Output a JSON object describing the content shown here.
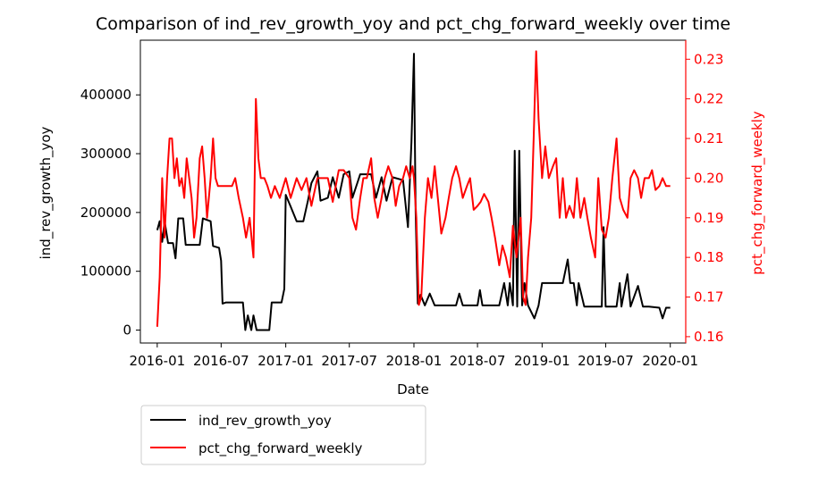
{
  "chart_data": {
    "type": "line",
    "title": "Comparison of ind_rev_growth_yoy and pct_chg_forward_weekly over time",
    "xlabel": "Date",
    "ylabel": "ind_rev_growth_yoy",
    "ylabel_right": "pct_chg_forward_weekly",
    "x_ticks": [
      "2016-01",
      "2016-07",
      "2017-01",
      "2017-07",
      "2018-01",
      "2018-07",
      "2019-01",
      "2019-07",
      "2020-01"
    ],
    "y_ticks_left": [
      0,
      100000,
      200000,
      300000,
      400000
    ],
    "y_ticks_right": [
      0.16,
      0.17,
      0.18,
      0.19,
      0.2,
      0.21,
      0.22,
      0.23
    ],
    "xlim": [
      "2015-11-14",
      "2020-02-14"
    ],
    "ylim_left": [
      -22000,
      493000
    ],
    "ylim_right": [
      0.1584,
      0.2348
    ],
    "legend_position": "below-left",
    "grid": false,
    "series": [
      {
        "name": "ind_rev_growth_yoy",
        "axis": "left",
        "color": "#000000",
        "points": [
          [
            "2016-01-01",
            170000
          ],
          [
            "2016-01-08",
            185000
          ],
          [
            "2016-01-15",
            150000
          ],
          [
            "2016-01-22",
            185000
          ],
          [
            "2016-02-01",
            148000
          ],
          [
            "2016-02-15",
            148000
          ],
          [
            "2016-02-22",
            122000
          ],
          [
            "2016-03-01",
            190000
          ],
          [
            "2016-03-15",
            190000
          ],
          [
            "2016-03-22",
            145000
          ],
          [
            "2016-04-15",
            145000
          ],
          [
            "2016-05-01",
            145000
          ],
          [
            "2016-05-10",
            190000
          ],
          [
            "2016-06-01",
            185000
          ],
          [
            "2016-06-08",
            143000
          ],
          [
            "2016-06-25",
            140000
          ],
          [
            "2016-07-01",
            118000
          ],
          [
            "2016-07-05",
            45000
          ],
          [
            "2016-07-15",
            47000
          ],
          [
            "2016-08-15",
            47000
          ],
          [
            "2016-09-01",
            47000
          ],
          [
            "2016-09-08",
            0
          ],
          [
            "2016-09-15",
            25000
          ],
          [
            "2016-09-25",
            0
          ],
          [
            "2016-10-01",
            25000
          ],
          [
            "2016-10-10",
            0
          ],
          [
            "2016-11-15",
            0
          ],
          [
            "2016-11-22",
            47000
          ],
          [
            "2016-12-20",
            47000
          ],
          [
            "2016-12-28",
            70000
          ],
          [
            "2017-01-01",
            230000
          ],
          [
            "2017-01-15",
            210000
          ],
          [
            "2017-02-01",
            185000
          ],
          [
            "2017-02-20",
            185000
          ],
          [
            "2017-03-05",
            220000
          ],
          [
            "2017-03-15",
            250000
          ],
          [
            "2017-04-01",
            270000
          ],
          [
            "2017-04-10",
            220000
          ],
          [
            "2017-05-01",
            225000
          ],
          [
            "2017-05-15",
            260000
          ],
          [
            "2017-06-01",
            225000
          ],
          [
            "2017-06-15",
            265000
          ],
          [
            "2017-07-01",
            270000
          ],
          [
            "2017-07-10",
            225000
          ],
          [
            "2017-08-01",
            265000
          ],
          [
            "2017-09-01",
            265000
          ],
          [
            "2017-09-15",
            225000
          ],
          [
            "2017-10-01",
            260000
          ],
          [
            "2017-10-15",
            220000
          ],
          [
            "2017-11-01",
            260000
          ],
          [
            "2017-12-01",
            255000
          ],
          [
            "2017-12-15",
            175000
          ],
          [
            "2017-12-25",
            320000
          ],
          [
            "2018-01-01",
            470000
          ],
          [
            "2018-01-06",
            200000
          ],
          [
            "2018-01-12",
            45000
          ],
          [
            "2018-01-20",
            60000
          ],
          [
            "2018-02-01",
            42000
          ],
          [
            "2018-02-15",
            62000
          ],
          [
            "2018-03-01",
            42000
          ],
          [
            "2018-05-01",
            42000
          ],
          [
            "2018-05-10",
            62000
          ],
          [
            "2018-05-20",
            42000
          ],
          [
            "2018-07-01",
            42000
          ],
          [
            "2018-07-08",
            68000
          ],
          [
            "2018-07-15",
            42000
          ],
          [
            "2018-09-01",
            42000
          ],
          [
            "2018-09-15",
            80000
          ],
          [
            "2018-09-25",
            42000
          ],
          [
            "2018-10-01",
            80000
          ],
          [
            "2018-10-10",
            42000
          ],
          [
            "2018-10-15",
            305000
          ],
          [
            "2018-10-22",
            40000
          ],
          [
            "2018-10-28",
            305000
          ],
          [
            "2018-11-05",
            42000
          ],
          [
            "2018-11-12",
            80000
          ],
          [
            "2018-11-22",
            42000
          ],
          [
            "2018-12-10",
            20000
          ],
          [
            "2018-12-22",
            42000
          ],
          [
            "2019-01-01",
            80000
          ],
          [
            "2019-02-01",
            80000
          ],
          [
            "2019-03-01",
            80000
          ],
          [
            "2019-03-15",
            120000
          ],
          [
            "2019-03-22",
            80000
          ],
          [
            "2019-04-01",
            80000
          ],
          [
            "2019-04-10",
            42000
          ],
          [
            "2019-04-15",
            80000
          ],
          [
            "2019-05-01",
            40000
          ],
          [
            "2019-05-15",
            40000
          ],
          [
            "2019-06-01",
            40000
          ],
          [
            "2019-06-20",
            40000
          ],
          [
            "2019-06-25",
            175000
          ],
          [
            "2019-07-01",
            40000
          ],
          [
            "2019-08-01",
            40000
          ],
          [
            "2019-08-10",
            80000
          ],
          [
            "2019-08-15",
            40000
          ],
          [
            "2019-09-01",
            95000
          ],
          [
            "2019-09-10",
            40000
          ],
          [
            "2019-10-01",
            75000
          ],
          [
            "2019-10-15",
            40000
          ],
          [
            "2019-11-01",
            40000
          ],
          [
            "2019-12-01",
            38000
          ],
          [
            "2019-12-10",
            20000
          ],
          [
            "2019-12-20",
            38000
          ],
          [
            "2020-01-01",
            38000
          ]
        ]
      },
      {
        "name": "pct_chg_forward_weekly",
        "axis": "right",
        "color": "#ff0000",
        "points": [
          [
            "2016-01-01",
            0.1625
          ],
          [
            "2016-01-08",
            0.175
          ],
          [
            "2016-01-15",
            0.2
          ],
          [
            "2016-01-22",
            0.185
          ],
          [
            "2016-01-29",
            0.2
          ],
          [
            "2016-02-05",
            0.21
          ],
          [
            "2016-02-12",
            0.21
          ],
          [
            "2016-02-19",
            0.2
          ],
          [
            "2016-02-26",
            0.205
          ],
          [
            "2016-03-04",
            0.198
          ],
          [
            "2016-03-11",
            0.2
          ],
          [
            "2016-03-18",
            0.195
          ],
          [
            "2016-03-25",
            0.205
          ],
          [
            "2016-04-01",
            0.2
          ],
          [
            "2016-04-08",
            0.195
          ],
          [
            "2016-04-15",
            0.185
          ],
          [
            "2016-04-22",
            0.19
          ],
          [
            "2016-05-01",
            0.205
          ],
          [
            "2016-05-08",
            0.208
          ],
          [
            "2016-05-15",
            0.2
          ],
          [
            "2016-05-22",
            0.19
          ],
          [
            "2016-06-01",
            0.2
          ],
          [
            "2016-06-08",
            0.21
          ],
          [
            "2016-06-15",
            0.2
          ],
          [
            "2016-06-22",
            0.198
          ],
          [
            "2016-07-01",
            0.198
          ],
          [
            "2016-07-15",
            0.198
          ],
          [
            "2016-08-01",
            0.198
          ],
          [
            "2016-08-10",
            0.2
          ],
          [
            "2016-08-20",
            0.195
          ],
          [
            "2016-09-01",
            0.19
          ],
          [
            "2016-09-10",
            0.185
          ],
          [
            "2016-09-20",
            0.19
          ],
          [
            "2016-10-01",
            0.18
          ],
          [
            "2016-10-08",
            0.22
          ],
          [
            "2016-10-15",
            0.205
          ],
          [
            "2016-10-22",
            0.2
          ],
          [
            "2016-11-01",
            0.2
          ],
          [
            "2016-11-10",
            0.198
          ],
          [
            "2016-11-20",
            0.195
          ],
          [
            "2016-12-01",
            0.198
          ],
          [
            "2016-12-15",
            0.195
          ],
          [
            "2017-01-01",
            0.2
          ],
          [
            "2017-01-15",
            0.195
          ],
          [
            "2017-02-01",
            0.2
          ],
          [
            "2017-02-15",
            0.197
          ],
          [
            "2017-03-01",
            0.2
          ],
          [
            "2017-03-15",
            0.193
          ],
          [
            "2017-04-01",
            0.2
          ],
          [
            "2017-05-01",
            0.2
          ],
          [
            "2017-05-15",
            0.194
          ],
          [
            "2017-06-01",
            0.202
          ],
          [
            "2017-06-15",
            0.202
          ],
          [
            "2017-07-01",
            0.2
          ],
          [
            "2017-07-10",
            0.19
          ],
          [
            "2017-07-20",
            0.187
          ],
          [
            "2017-08-01",
            0.195
          ],
          [
            "2017-08-10",
            0.2
          ],
          [
            "2017-08-20",
            0.2
          ],
          [
            "2017-09-01",
            0.205
          ],
          [
            "2017-09-10",
            0.195
          ],
          [
            "2017-09-20",
            0.19
          ],
          [
            "2017-10-01",
            0.195
          ],
          [
            "2017-10-10",
            0.2
          ],
          [
            "2017-10-20",
            0.203
          ],
          [
            "2017-11-01",
            0.2
          ],
          [
            "2017-11-10",
            0.193
          ],
          [
            "2017-11-20",
            0.198
          ],
          [
            "2017-12-01",
            0.2
          ],
          [
            "2017-12-10",
            0.203
          ],
          [
            "2017-12-20",
            0.2
          ],
          [
            "2017-12-28",
            0.203
          ],
          [
            "2018-01-01",
            0.2
          ],
          [
            "2018-01-08",
            0.19
          ],
          [
            "2018-01-15",
            0.168
          ],
          [
            "2018-01-22",
            0.17
          ],
          [
            "2018-02-01",
            0.19
          ],
          [
            "2018-02-10",
            0.2
          ],
          [
            "2018-02-20",
            0.195
          ],
          [
            "2018-03-01",
            0.203
          ],
          [
            "2018-03-10",
            0.195
          ],
          [
            "2018-03-20",
            0.186
          ],
          [
            "2018-04-01",
            0.19
          ],
          [
            "2018-04-10",
            0.195
          ],
          [
            "2018-04-20",
            0.2
          ],
          [
            "2018-05-01",
            0.203
          ],
          [
            "2018-05-10",
            0.2
          ],
          [
            "2018-05-20",
            0.195
          ],
          [
            "2018-06-01",
            0.198
          ],
          [
            "2018-06-10",
            0.2
          ],
          [
            "2018-06-20",
            0.192
          ],
          [
            "2018-07-01",
            0.193
          ],
          [
            "2018-07-10",
            0.194
          ],
          [
            "2018-07-20",
            0.196
          ],
          [
            "2018-08-01",
            0.194
          ],
          [
            "2018-08-10",
            0.19
          ],
          [
            "2018-08-20",
            0.185
          ],
          [
            "2018-09-01",
            0.178
          ],
          [
            "2018-09-10",
            0.183
          ],
          [
            "2018-09-20",
            0.18
          ],
          [
            "2018-10-01",
            0.175
          ],
          [
            "2018-10-10",
            0.188
          ],
          [
            "2018-10-20",
            0.18
          ],
          [
            "2018-11-01",
            0.19
          ],
          [
            "2018-11-08",
            0.17
          ],
          [
            "2018-11-15",
            0.168
          ],
          [
            "2018-11-22",
            0.18
          ],
          [
            "2018-12-01",
            0.19
          ],
          [
            "2018-12-08",
            0.21
          ],
          [
            "2018-12-15",
            0.232
          ],
          [
            "2018-12-22",
            0.215
          ],
          [
            "2019-01-01",
            0.2
          ],
          [
            "2019-01-10",
            0.208
          ],
          [
            "2019-01-20",
            0.2
          ],
          [
            "2019-02-01",
            0.203
          ],
          [
            "2019-02-10",
            0.205
          ],
          [
            "2019-02-20",
            0.19
          ],
          [
            "2019-03-01",
            0.2
          ],
          [
            "2019-03-10",
            0.19
          ],
          [
            "2019-03-20",
            0.193
          ],
          [
            "2019-04-01",
            0.19
          ],
          [
            "2019-04-10",
            0.2
          ],
          [
            "2019-04-20",
            0.19
          ],
          [
            "2019-05-01",
            0.195
          ],
          [
            "2019-05-10",
            0.19
          ],
          [
            "2019-05-20",
            0.185
          ],
          [
            "2019-06-01",
            0.18
          ],
          [
            "2019-06-10",
            0.2
          ],
          [
            "2019-06-20",
            0.187
          ],
          [
            "2019-07-01",
            0.185
          ],
          [
            "2019-07-10",
            0.19
          ],
          [
            "2019-07-20",
            0.2
          ],
          [
            "2019-08-01",
            0.21
          ],
          [
            "2019-08-10",
            0.195
          ],
          [
            "2019-08-20",
            0.192
          ],
          [
            "2019-09-01",
            0.19
          ],
          [
            "2019-09-10",
            0.2
          ],
          [
            "2019-09-20",
            0.202
          ],
          [
            "2019-10-01",
            0.2
          ],
          [
            "2019-10-10",
            0.195
          ],
          [
            "2019-10-20",
            0.2
          ],
          [
            "2019-11-01",
            0.2
          ],
          [
            "2019-11-10",
            0.202
          ],
          [
            "2019-11-20",
            0.197
          ],
          [
            "2019-12-01",
            0.198
          ],
          [
            "2019-12-10",
            0.2
          ],
          [
            "2019-12-20",
            0.198
          ],
          [
            "2020-01-01",
            0.198
          ]
        ]
      }
    ]
  }
}
